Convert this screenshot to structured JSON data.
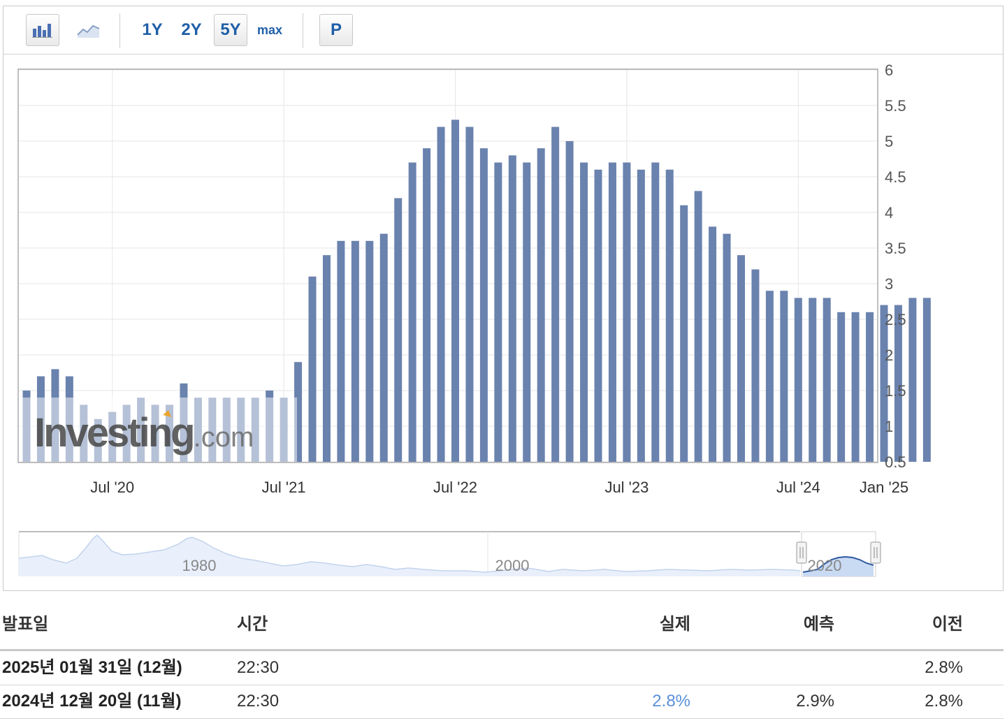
{
  "toolbar": {
    "bar_icon": "bar-chart-icon",
    "line_icon": "line-chart-icon",
    "range_buttons": [
      "1Y",
      "2Y",
      "5Y",
      "max"
    ],
    "selected_range": "5Y",
    "p_button": "P"
  },
  "chart_data": {
    "type": "bar",
    "start": "2020-01",
    "values": [
      1.5,
      1.7,
      1.8,
      1.7,
      1.3,
      1.1,
      1.2,
      1.3,
      1.4,
      1.3,
      1.3,
      1.6,
      1.4,
      1.4,
      1.4,
      1.4,
      1.4,
      1.5,
      1.4,
      1.9,
      3.1,
      3.4,
      3.6,
      3.6,
      3.6,
      3.7,
      4.2,
      4.7,
      4.9,
      5.2,
      5.3,
      5.2,
      4.9,
      4.7,
      4.8,
      4.7,
      4.9,
      5.2,
      5.0,
      4.7,
      4.6,
      4.7,
      4.7,
      4.6,
      4.7,
      4.6,
      4.1,
      4.3,
      3.8,
      3.7,
      3.4,
      3.2,
      2.9,
      2.9,
      2.8,
      2.8,
      2.8,
      2.6,
      2.6,
      2.6,
      2.7,
      2.7,
      2.8,
      2.8
    ],
    "ylim": [
      0.5,
      6
    ],
    "y_ticks": [
      "6",
      "5.5",
      "5",
      "4.5",
      "4",
      "3.5",
      "3",
      "2.5",
      "2",
      "1.5",
      "1",
      "0.5"
    ],
    "x_ticks": [
      "Jul '20",
      "Jul '21",
      "Jul '22",
      "Jul '23",
      "Jul '24",
      "Jan '25"
    ],
    "bar_color": "#6a82ae",
    "grid": true,
    "watermark": "Investing.com",
    "navigator": {
      "labels": [
        "1980",
        "2000",
        "2020"
      ]
    }
  },
  "table": {
    "headers": [
      "발표일",
      "시간",
      "실제",
      "예측",
      "이전"
    ],
    "rows": [
      {
        "date": "2025년 01월 31일 (12월)",
        "time": "22:30",
        "actual": "",
        "forecast": "",
        "previous": "2.8%"
      },
      {
        "date": "2024년 12월 20일 (11월)",
        "time": "22:30",
        "actual": "2.8%",
        "forecast": "2.9%",
        "previous": "2.8%"
      }
    ],
    "actual_color": "#5b8fd9"
  }
}
